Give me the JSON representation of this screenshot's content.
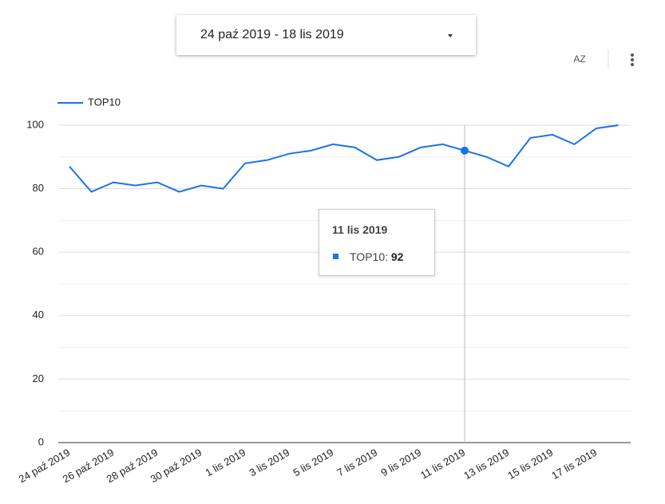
{
  "date_range": "24 paź 2019 - 18 lis 2019",
  "sort_label": "AZ",
  "tooltip": {
    "title": "11 lis 2019",
    "label": "TOP10:",
    "value": "92"
  },
  "chart_data": {
    "type": "line",
    "categories": [
      "24 paź 2019",
      null,
      "26 paź 2019",
      null,
      "28 paź 2019",
      null,
      "30 paź 2019",
      null,
      "1 lis 2019",
      null,
      "3 lis 2019",
      null,
      "5 lis 2019",
      null,
      "7 lis 2019",
      null,
      "9 lis 2019",
      null,
      "11 lis 2019",
      null,
      "13 lis 2019",
      null,
      "15 lis 2019",
      null,
      "17 lis 2019",
      null
    ],
    "series": [
      {
        "name": "TOP10",
        "color": "#1a73e8",
        "values": [
          87,
          79,
          82,
          81,
          82,
          79,
          81,
          80,
          88,
          89,
          91,
          92,
          94,
          93,
          89,
          90,
          93,
          94,
          92,
          90,
          87,
          96,
          97,
          94,
          99,
          100
        ]
      }
    ],
    "ylim": [
      0,
      100
    ],
    "yticks": [
      0,
      20,
      40,
      60,
      80,
      100
    ],
    "grid": true,
    "legend": "top-left"
  }
}
